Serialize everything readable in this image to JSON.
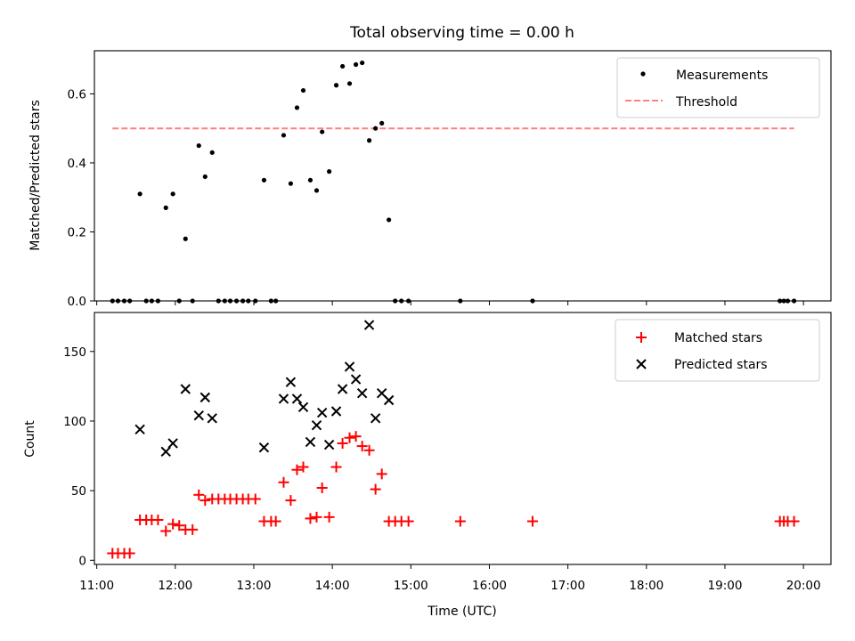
{
  "chart_data": [
    {
      "type": "scatter",
      "title": "Total observing time = 0.00 h",
      "xlabel": "",
      "ylabel": "Matched/Predicted stars",
      "xlim": [
        10.97,
        20.35
      ],
      "ylim": [
        0,
        0.725
      ],
      "yticks": [
        0.0,
        0.2,
        0.4,
        0.6
      ],
      "ytick_labels": [
        "0.0",
        "0.2",
        "0.4",
        "0.6"
      ],
      "legend_position": "top-right",
      "series": [
        {
          "name": "Measurements",
          "kind": "points",
          "color": "#000000",
          "x": [
            11.2,
            11.27,
            11.35,
            11.42,
            11.55,
            11.63,
            11.7,
            11.78,
            11.88,
            11.97,
            12.05,
            12.13,
            12.22,
            12.3,
            12.38,
            12.47,
            12.55,
            12.63,
            12.7,
            12.78,
            12.86,
            12.93,
            13.02,
            13.13,
            13.22,
            13.28,
            13.38,
            13.47,
            13.55,
            13.63,
            13.72,
            13.8,
            13.87,
            13.96,
            14.05,
            14.13,
            14.22,
            14.3,
            14.38,
            14.47,
            14.55,
            14.63,
            14.72,
            14.8,
            14.88,
            14.97,
            15.63,
            16.55,
            19.7,
            19.75,
            19.8,
            19.88
          ],
          "y": [
            0,
            0,
            0,
            0,
            0.31,
            0,
            0,
            0,
            0.27,
            0.31,
            0,
            0.18,
            0,
            0.45,
            0.36,
            0.43,
            0,
            0,
            0,
            0,
            0,
            0,
            0,
            0.35,
            0,
            0,
            0.48,
            0.34,
            0.56,
            0.61,
            0.35,
            0.32,
            0.49,
            0.375,
            0.625,
            0.68,
            0.63,
            0.685,
            0.69,
            0.465,
            0.5,
            0.515,
            0.235,
            0,
            0,
            0,
            0,
            0,
            0,
            0,
            0,
            0
          ]
        },
        {
          "name": "Threshold",
          "kind": "dashed-line",
          "color": "#ff8080",
          "x": [
            11.2,
            19.88
          ],
          "y": [
            0.5,
            0.5
          ]
        }
      ]
    },
    {
      "type": "scatter",
      "title": "",
      "xlabel": "Time (UTC)",
      "ylabel": "Count",
      "xlim": [
        10.97,
        20.35
      ],
      "ylim": [
        -3,
        178
      ],
      "xticks": [
        11,
        12,
        13,
        14,
        15,
        16,
        17,
        18,
        19,
        20
      ],
      "xtick_labels": [
        "11:00",
        "12:00",
        "13:00",
        "14:00",
        "15:00",
        "16:00",
        "17:00",
        "18:00",
        "19:00",
        "20:00"
      ],
      "yticks": [
        0,
        50,
        100,
        150
      ],
      "ytick_labels": [
        "0",
        "50",
        "100",
        "150"
      ],
      "legend_position": "top-right",
      "series": [
        {
          "name": "Matched stars",
          "marker": "+",
          "color": "#ff0000",
          "x": [
            11.2,
            11.27,
            11.35,
            11.42,
            11.55,
            11.63,
            11.7,
            11.78,
            11.88,
            11.97,
            12.05,
            12.13,
            12.22,
            12.3,
            12.38,
            12.47,
            12.55,
            12.63,
            12.7,
            12.78,
            12.86,
            12.93,
            13.02,
            13.13,
            13.22,
            13.28,
            13.38,
            13.47,
            13.55,
            13.63,
            13.72,
            13.8,
            13.87,
            13.96,
            14.05,
            14.13,
            14.22,
            14.3,
            14.38,
            14.47,
            14.55,
            14.63,
            14.72,
            14.8,
            14.88,
            14.97,
            15.63,
            16.55,
            19.7,
            19.75,
            19.8,
            19.88
          ],
          "y": [
            5,
            5,
            5,
            5,
            29,
            29,
            29,
            29,
            21,
            26,
            25,
            22,
            22,
            47,
            43,
            44,
            44,
            44,
            44,
            44,
            44,
            44,
            44,
            28,
            28,
            28,
            56,
            43,
            65,
            67,
            30,
            31,
            52,
            31,
            67,
            84,
            88,
            89,
            82,
            79,
            51,
            62,
            28,
            28,
            28,
            28,
            28,
            28,
            28,
            28,
            28,
            28
          ]
        },
        {
          "name": "Predicted stars",
          "marker": "x",
          "color": "#000000",
          "x": [
            11.55,
            11.88,
            11.97,
            12.13,
            12.3,
            12.38,
            12.47,
            13.13,
            13.38,
            13.47,
            13.55,
            13.63,
            13.72,
            13.8,
            13.87,
            13.96,
            14.05,
            14.13,
            14.22,
            14.3,
            14.38,
            14.47,
            14.55,
            14.63,
            14.72
          ],
          "y": [
            94,
            78,
            84,
            123,
            104,
            117,
            102,
            81,
            116,
            128,
            116,
            110,
            85,
            97,
            106,
            83,
            107,
            123,
            139,
            130,
            120,
            169,
            102,
            120,
            115
          ]
        }
      ]
    }
  ]
}
